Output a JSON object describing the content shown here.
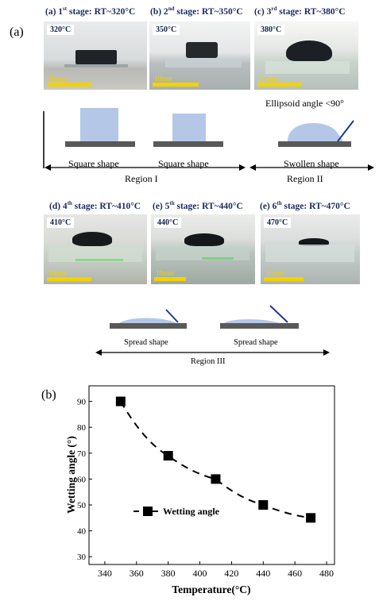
{
  "panel_a_label": "(a)",
  "panel_b_label": "(b)",
  "stages": [
    {
      "caption_prefix": "(a) 1",
      "sup": "st",
      "caption_rest": " stage: RT~320°C",
      "temp_tag": "320°C",
      "scale": "10mm"
    },
    {
      "caption_prefix": "(b) 2",
      "sup": "nd",
      "caption_rest": " stage: RT~350°C",
      "temp_tag": "350°C",
      "scale": "10mm"
    },
    {
      "caption_prefix": "(c) 3",
      "sup": "rd",
      "caption_rest": " stage: RT~380°C",
      "temp_tag": "380°C",
      "scale": "10mm"
    },
    {
      "caption_prefix": "(d) 4",
      "sup": "th",
      "caption_rest": " stage: RT~410°C",
      "temp_tag": "410°C",
      "scale": "10mm"
    },
    {
      "caption_prefix": "(e) 5",
      "sup": "th",
      "caption_rest": " stage: RT~440°C",
      "temp_tag": "440°C",
      "scale": "10mm"
    },
    {
      "caption_prefix": "(e) 6",
      "sup": "th",
      "caption_rest": " stage: RT~470°C",
      "temp_tag": "470°C",
      "scale": "10mm"
    }
  ],
  "ellipsoid_note": "Ellipsoid angle <90°",
  "shapes": {
    "square1": "Square shape",
    "square2": "Square shape",
    "swollen": "Swollen shape",
    "spread1": "Spread shape",
    "spread2": "Spread shape"
  },
  "regions": {
    "r1": "Region I",
    "r2": "Region II",
    "r3": "Region III"
  },
  "colors": {
    "shape_fill": "#b4c7e7",
    "substrate": "#595959",
    "caption": "#1a2a5e",
    "contact_line": "#1f3a93",
    "scale_bar": "#f2d200"
  },
  "chart_data": {
    "type": "scatter",
    "xlabel": "Temperature(°C)",
    "ylabel": "Wetting angle (°)",
    "xlim": [
      330,
      485
    ],
    "ylim": [
      27,
      96
    ],
    "xticks": [
      "340",
      "360",
      "380",
      "400",
      "420",
      "440",
      "460",
      "480"
    ],
    "yticks": [
      "30",
      "40",
      "50",
      "60",
      "70",
      "80",
      "90"
    ],
    "series": [
      {
        "name": "Wetting angle",
        "x": [
          350,
          380,
          410,
          440,
          470
        ],
        "y": [
          90,
          69,
          60,
          50,
          45
        ]
      }
    ],
    "legend_position": "middle-left",
    "line_style": "dashed",
    "marker": "square"
  }
}
